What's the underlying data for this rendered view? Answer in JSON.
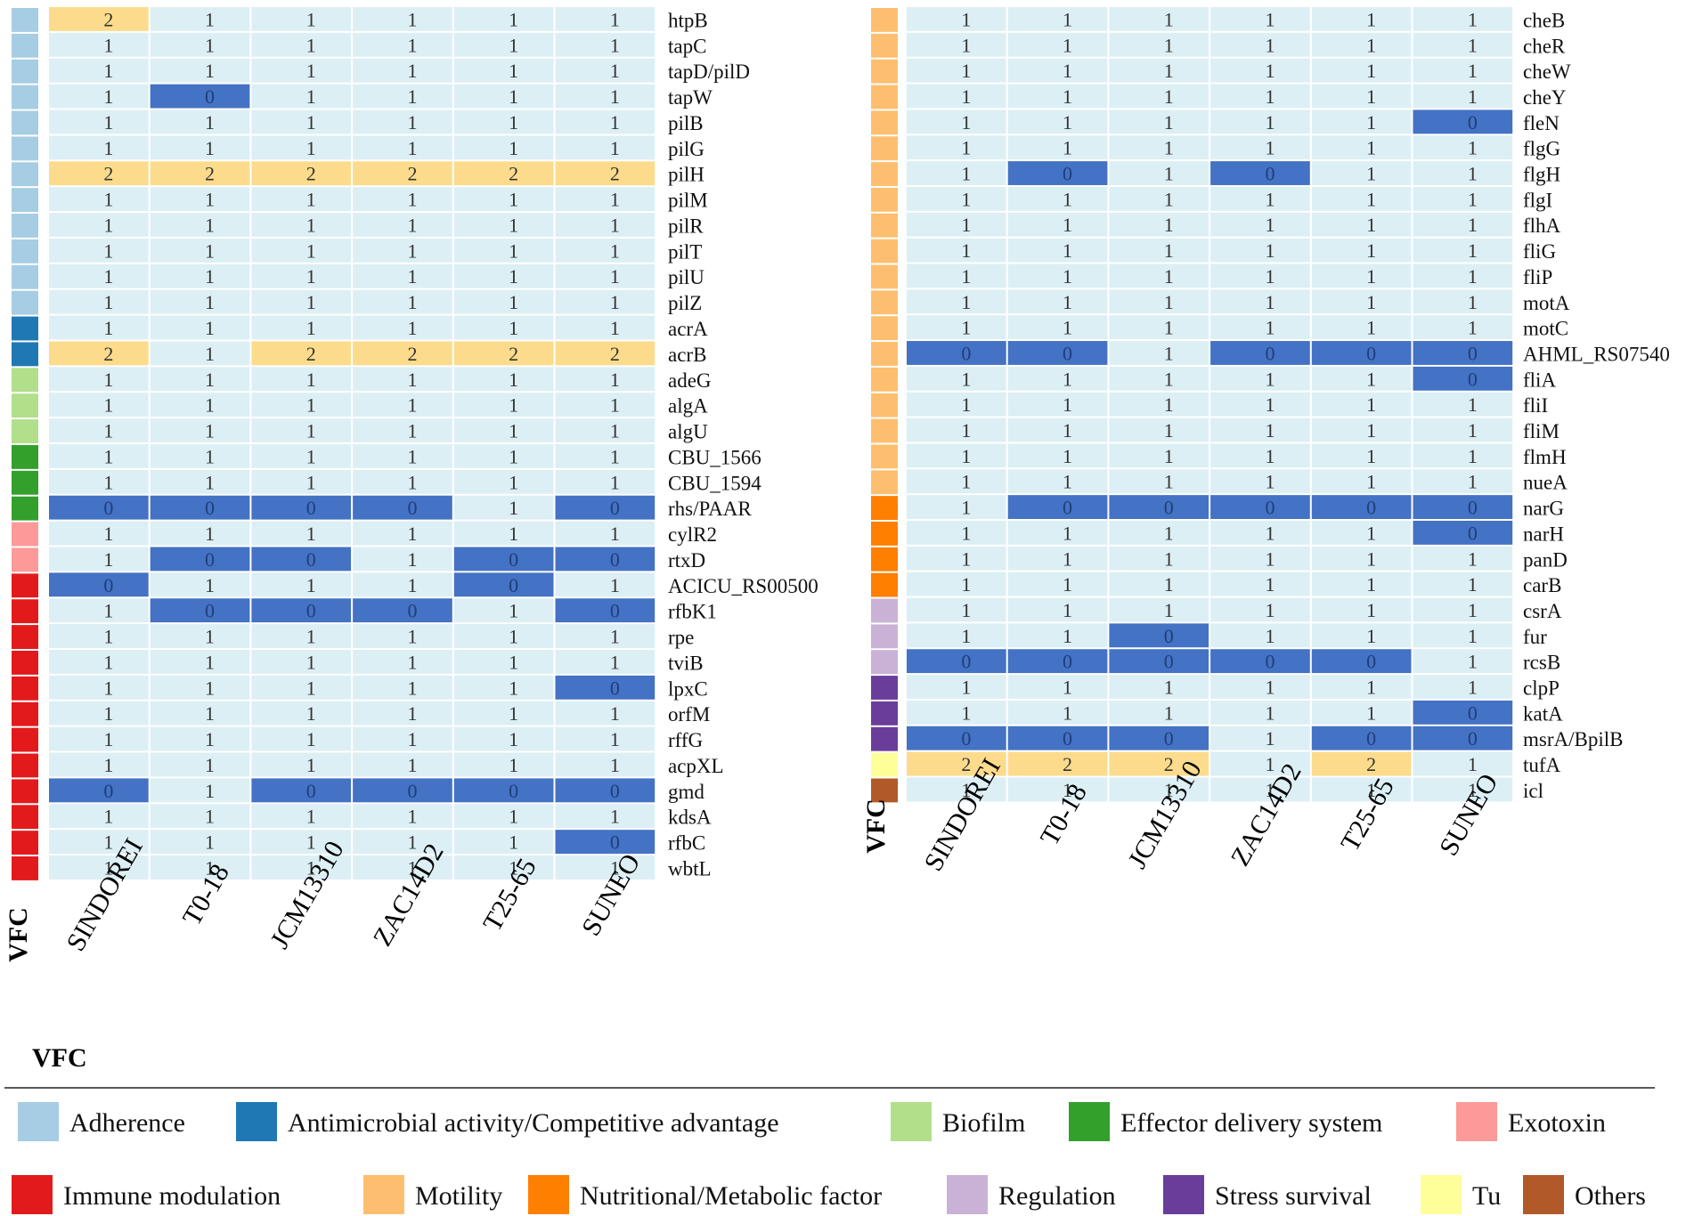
{
  "chart_data": [
    {
      "type": "heatmap",
      "title": "",
      "strains": [
        "SINDOREI",
        "T0-18",
        "JCM13310",
        "ZAC14D2",
        "T25-65",
        "SUNEO"
      ],
      "category_axis_label": "VFC",
      "genes": [
        "htpB",
        "tapC",
        "tapD/pilD",
        "tapW",
        "pilB",
        "pilG",
        "pilH",
        "pilM",
        "pilR",
        "pilT",
        "pilU",
        "pilZ",
        "acrA",
        "acrB",
        "adeG",
        "algA",
        "algU",
        "CBU_1566",
        "CBU_1594",
        "rhs/PAAR",
        "cylR2",
        "rtxD",
        "ACICU_RS00500",
        "rfbK1",
        "rpe",
        "tviB",
        "lpxC",
        "orfM",
        "rffG",
        "acpXL",
        "gmd",
        "kdsA",
        "rfbC",
        "wbtL"
      ],
      "vfc": [
        "adherence",
        "adherence",
        "adherence",
        "adherence",
        "adherence",
        "adherence",
        "adherence",
        "adherence",
        "adherence",
        "adherence",
        "adherence",
        "adherence",
        "antimicrobial",
        "antimicrobial",
        "biofilm",
        "biofilm",
        "biofilm",
        "effector",
        "effector",
        "effector",
        "exotoxin",
        "exotoxin",
        "immune",
        "immune",
        "immune",
        "immune",
        "immune",
        "immune",
        "immune",
        "immune",
        "immune",
        "immune",
        "immune",
        "immune"
      ],
      "values": [
        [
          2,
          1,
          1,
          1,
          1,
          1
        ],
        [
          1,
          1,
          1,
          1,
          1,
          1
        ],
        [
          1,
          1,
          1,
          1,
          1,
          1
        ],
        [
          1,
          0,
          1,
          1,
          1,
          1
        ],
        [
          1,
          1,
          1,
          1,
          1,
          1
        ],
        [
          1,
          1,
          1,
          1,
          1,
          1
        ],
        [
          2,
          2,
          2,
          2,
          2,
          2
        ],
        [
          1,
          1,
          1,
          1,
          1,
          1
        ],
        [
          1,
          1,
          1,
          1,
          1,
          1
        ],
        [
          1,
          1,
          1,
          1,
          1,
          1
        ],
        [
          1,
          1,
          1,
          1,
          1,
          1
        ],
        [
          1,
          1,
          1,
          1,
          1,
          1
        ],
        [
          1,
          1,
          1,
          1,
          1,
          1
        ],
        [
          2,
          1,
          2,
          2,
          2,
          2
        ],
        [
          1,
          1,
          1,
          1,
          1,
          1
        ],
        [
          1,
          1,
          1,
          1,
          1,
          1
        ],
        [
          1,
          1,
          1,
          1,
          1,
          1
        ],
        [
          1,
          1,
          1,
          1,
          1,
          1
        ],
        [
          1,
          1,
          1,
          1,
          1,
          1
        ],
        [
          0,
          0,
          0,
          0,
          1,
          0
        ],
        [
          1,
          1,
          1,
          1,
          1,
          1
        ],
        [
          1,
          0,
          0,
          1,
          0,
          0
        ],
        [
          0,
          1,
          1,
          1,
          0,
          1
        ],
        [
          1,
          0,
          0,
          0,
          1,
          0
        ],
        [
          1,
          1,
          1,
          1,
          1,
          1
        ],
        [
          1,
          1,
          1,
          1,
          1,
          1
        ],
        [
          1,
          1,
          1,
          1,
          1,
          0
        ],
        [
          1,
          1,
          1,
          1,
          1,
          1
        ],
        [
          1,
          1,
          1,
          1,
          1,
          1
        ],
        [
          1,
          1,
          1,
          1,
          1,
          1
        ],
        [
          0,
          1,
          0,
          0,
          0,
          0
        ],
        [
          1,
          1,
          1,
          1,
          1,
          1
        ],
        [
          1,
          1,
          1,
          1,
          1,
          0
        ],
        [
          1,
          1,
          1,
          1,
          1,
          1
        ]
      ]
    },
    {
      "type": "heatmap",
      "title": "",
      "strains": [
        "SINDOREI",
        "T0-18",
        "JCM13310",
        "ZAC14D2",
        "T25-65",
        "SUNEO"
      ],
      "category_axis_label": "VFC",
      "genes": [
        "cheB",
        "cheR",
        "cheW",
        "cheY",
        "fleN",
        "flgG",
        "flgH",
        "flgI",
        "flhA",
        "fliG",
        "fliP",
        "motA",
        "motC",
        "AHML_RS07540",
        "fliA",
        "fliI",
        "fliM",
        "flmH",
        "nueA",
        "narG",
        "narH",
        "panD",
        "carB",
        "csrA",
        "fur",
        "rcsB",
        "clpP",
        "katA",
        "msrA/BpilB",
        "tufA",
        "icl"
      ],
      "vfc": [
        "motility",
        "motility",
        "motility",
        "motility",
        "motility",
        "motility",
        "motility",
        "motility",
        "motility",
        "motility",
        "motility",
        "motility",
        "motility",
        "motility",
        "motility",
        "motility",
        "motility",
        "motility",
        "motility",
        "nutritional",
        "nutritional",
        "nutritional",
        "nutritional",
        "regulation",
        "regulation",
        "regulation",
        "stress",
        "stress",
        "stress",
        "tu",
        "others"
      ],
      "values": [
        [
          1,
          1,
          1,
          1,
          1,
          1
        ],
        [
          1,
          1,
          1,
          1,
          1,
          1
        ],
        [
          1,
          1,
          1,
          1,
          1,
          1
        ],
        [
          1,
          1,
          1,
          1,
          1,
          1
        ],
        [
          1,
          1,
          1,
          1,
          1,
          0
        ],
        [
          1,
          1,
          1,
          1,
          1,
          1
        ],
        [
          1,
          0,
          1,
          0,
          1,
          1
        ],
        [
          1,
          1,
          1,
          1,
          1,
          1
        ],
        [
          1,
          1,
          1,
          1,
          1,
          1
        ],
        [
          1,
          1,
          1,
          1,
          1,
          1
        ],
        [
          1,
          1,
          1,
          1,
          1,
          1
        ],
        [
          1,
          1,
          1,
          1,
          1,
          1
        ],
        [
          1,
          1,
          1,
          1,
          1,
          1
        ],
        [
          0,
          0,
          1,
          0,
          0,
          0
        ],
        [
          1,
          1,
          1,
          1,
          1,
          0
        ],
        [
          1,
          1,
          1,
          1,
          1,
          1
        ],
        [
          1,
          1,
          1,
          1,
          1,
          1
        ],
        [
          1,
          1,
          1,
          1,
          1,
          1
        ],
        [
          1,
          1,
          1,
          1,
          1,
          1
        ],
        [
          1,
          0,
          0,
          0,
          0,
          0
        ],
        [
          1,
          1,
          1,
          1,
          1,
          0
        ],
        [
          1,
          1,
          1,
          1,
          1,
          1
        ],
        [
          1,
          1,
          1,
          1,
          1,
          1
        ],
        [
          1,
          1,
          1,
          1,
          1,
          1
        ],
        [
          1,
          1,
          0,
          1,
          1,
          1
        ],
        [
          0,
          0,
          0,
          0,
          0,
          1
        ],
        [
          1,
          1,
          1,
          1,
          1,
          1
        ],
        [
          1,
          1,
          1,
          1,
          1,
          0
        ],
        [
          0,
          0,
          0,
          1,
          0,
          0
        ],
        [
          2,
          2,
          2,
          1,
          2,
          1
        ],
        [
          1,
          1,
          1,
          1,
          1,
          1
        ]
      ]
    }
  ],
  "value_colors": {
    "0": "#4472c4",
    "1": "#dceff5",
    "2": "#fcdc8c"
  },
  "vfc_legend_title": "VFC",
  "legend": [
    {
      "key": "adherence",
      "label": "Adherence",
      "color": "#a6cde3"
    },
    {
      "key": "antimicrobial",
      "label": "Antimicrobial activity/Competitive advantage",
      "color": "#1f78b4"
    },
    {
      "key": "biofilm",
      "label": "Biofilm",
      "color": "#b2df8a"
    },
    {
      "key": "effector",
      "label": "Effector delivery system",
      "color": "#33a02c"
    },
    {
      "key": "exotoxin",
      "label": "Exotoxin",
      "color": "#fb9a99"
    },
    {
      "key": "immune",
      "label": "Immune modulation",
      "color": "#e31a1c"
    },
    {
      "key": "motility",
      "label": "Motility",
      "color": "#fdbf6f"
    },
    {
      "key": "nutritional",
      "label": "Nutritional/Metabolic factor",
      "color": "#ff7f00"
    },
    {
      "key": "regulation",
      "label": "Regulation",
      "color": "#cab2d6"
    },
    {
      "key": "stress",
      "label": "Stress survival",
      "color": "#6a3d9a"
    },
    {
      "key": "tu",
      "label": "Tu",
      "color": "#ffff99"
    },
    {
      "key": "others",
      "label": "Others",
      "color": "#b15928"
    }
  ]
}
